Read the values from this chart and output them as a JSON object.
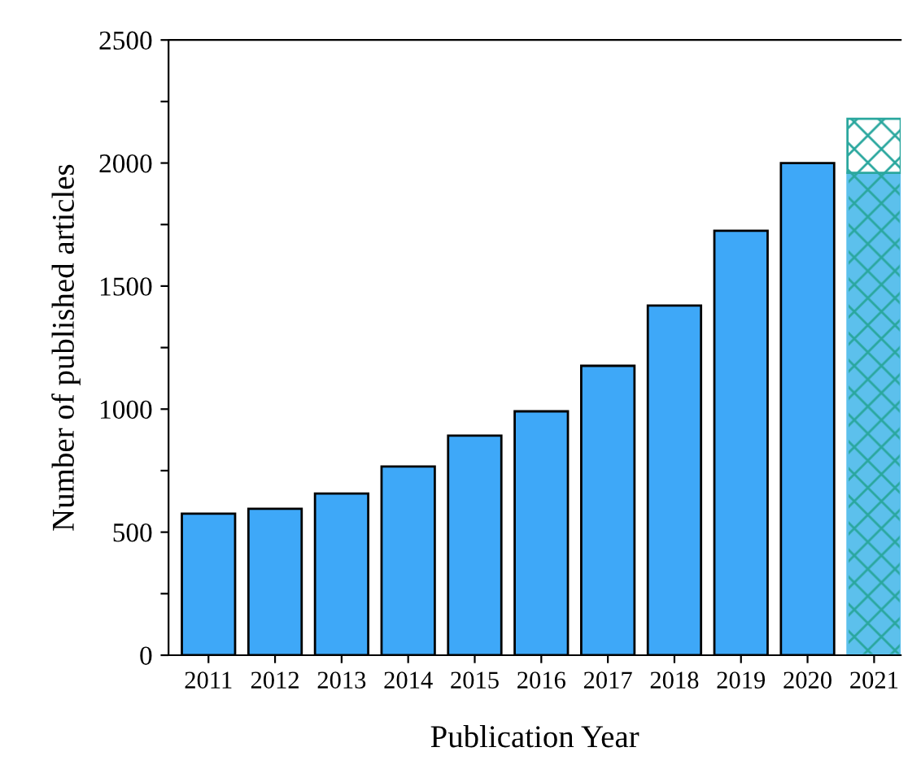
{
  "chart_data": {
    "type": "bar",
    "stacked": true,
    "xlabel": "Publication Year",
    "ylabel": "Number of published articles",
    "categories": [
      "2011",
      "2012",
      "2013",
      "2014",
      "2015",
      "2016",
      "2017",
      "2018",
      "2019",
      "2020",
      "2021"
    ],
    "series": [
      {
        "colors": [
          "#3ea8f8",
          "#3ea8f8",
          "#3ea8f8",
          "#3ea8f8",
          "#3ea8f8",
          "#3ea8f8",
          "#3ea8f8",
          "#3ea8f8",
          "#3ea8f8",
          "#3ea8f8",
          "#5cc0ec"
        ],
        "values": [
          575,
          595,
          657,
          767,
          892,
          991,
          1176,
          1421,
          1725,
          2000,
          1960
        ]
      },
      {
        "color": "#2aa79e",
        "values": [
          null,
          null,
          null,
          null,
          null,
          null,
          null,
          null,
          null,
          null,
          220
        ]
      }
    ],
    "ylim": [
      0,
      2500
    ],
    "yticks": [
      0,
      {
        "value": 250,
        "label": null
      },
      500,
      {
        "value": 750,
        "label": null
      },
      1000,
      {
        "value": 1250,
        "label": null
      },
      1500,
      {
        "value": 1750,
        "label": null
      },
      2000,
      {
        "value": 2250,
        "label": null
      },
      2500
    ],
    "grid": false,
    "legend": false
  }
}
